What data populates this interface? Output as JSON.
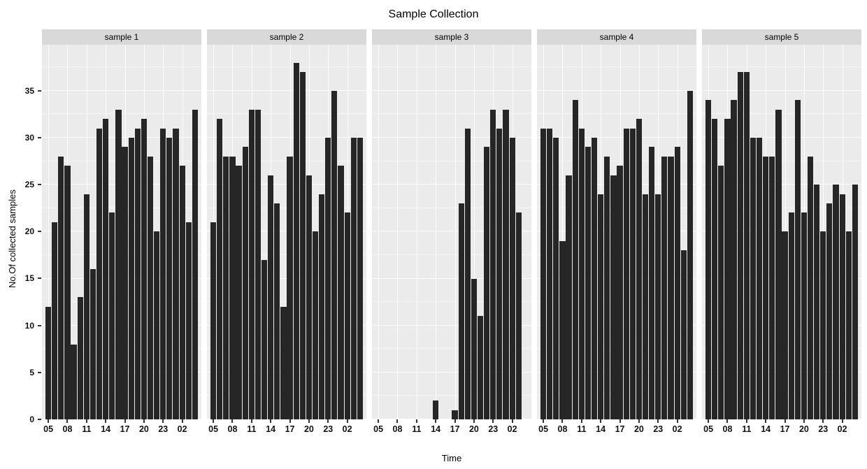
{
  "title": "Sample Collection",
  "chart_data": {
    "type": "bar",
    "title": "Sample Collection",
    "xlabel": "Time",
    "ylabel": "No.Of collected samples",
    "x_categories": [
      "05",
      "06",
      "07",
      "08",
      "09",
      "10",
      "11",
      "12",
      "13",
      "14",
      "15",
      "16",
      "17",
      "18",
      "19",
      "20",
      "21",
      "22",
      "23",
      "00",
      "01",
      "02",
      "03",
      "04"
    ],
    "x_tick_labels": [
      "05",
      "08",
      "11",
      "14",
      "17",
      "20",
      "23",
      "02"
    ],
    "x_tick_indices": [
      0,
      3,
      6,
      9,
      12,
      15,
      18,
      21
    ],
    "y_ticks": [
      0,
      5,
      10,
      15,
      20,
      25,
      30,
      35
    ],
    "y_minor_step": 2.5,
    "ylim": [
      0,
      39.9
    ],
    "grid": true,
    "legend_position": "none",
    "facets": [
      {
        "label": "sample 1",
        "values": [
          12,
          21,
          28,
          27,
          8,
          13,
          24,
          16,
          31,
          32,
          22,
          33,
          29,
          30,
          31,
          32,
          28,
          20,
          31,
          30,
          31,
          27,
          21,
          33
        ]
      },
      {
        "label": "sample 2",
        "values": [
          21,
          32,
          28,
          28,
          27,
          29,
          33,
          33,
          17,
          26,
          23,
          12,
          28,
          38,
          37,
          26,
          20,
          24,
          30,
          35,
          27,
          22,
          30,
          30
        ]
      },
      {
        "label": "sample 3",
        "values": [
          0,
          0,
          0,
          0,
          0,
          0,
          0,
          0,
          0,
          2,
          0,
          0,
          1,
          23,
          31,
          15,
          11,
          29,
          33,
          31,
          33,
          30,
          22,
          0
        ]
      },
      {
        "label": "sample 4",
        "values": [
          31,
          31,
          30,
          19,
          26,
          34,
          31,
          29,
          30,
          24,
          28,
          26,
          27,
          31,
          31,
          32,
          24,
          29,
          24,
          28,
          28,
          29,
          18,
          35
        ]
      },
      {
        "label": "sample 5",
        "values": [
          34,
          32,
          27,
          32,
          34,
          37,
          37,
          30,
          30,
          28,
          28,
          33,
          20,
          22,
          34,
          22,
          28,
          25,
          20,
          23,
          25,
          24,
          20,
          25
        ]
      }
    ],
    "colors": {
      "bar": "#262626",
      "panel_bg": "#ebebeb",
      "strip_bg": "#d9d9d9",
      "grid_major": "#ffffff",
      "grid_minor": "rgba(255,255,255,0.55)",
      "figure_bg": "#ffffff",
      "tick": "#333333"
    }
  }
}
